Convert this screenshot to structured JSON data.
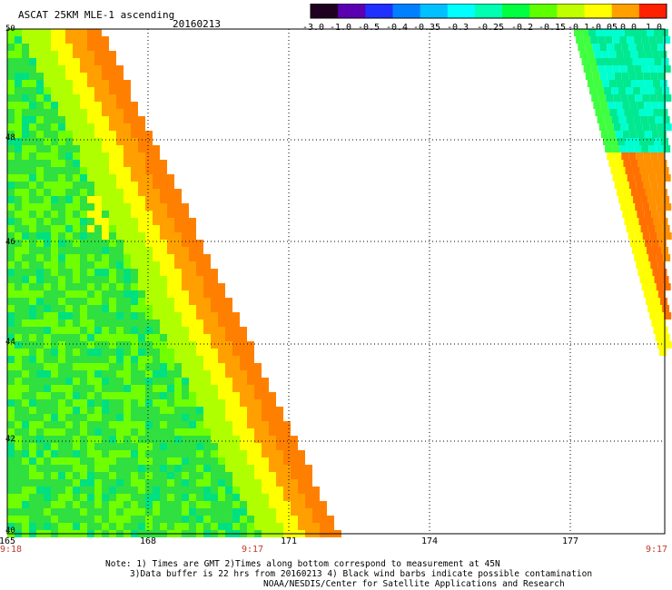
{
  "header": {
    "title": "ASCAT 25KM MLE-1 ascending",
    "date": "20160213"
  },
  "colorbar": {
    "tick_labels": [
      "-3.0",
      "-1.0",
      "-0.5",
      "-0.4",
      "-0.35",
      "-0.3",
      "-0.25",
      "-0.2",
      "-0.15",
      "-0.1",
      "-0.05",
      "0.0",
      "1.0"
    ],
    "colors": [
      "#200020",
      "#5a00b0",
      "#2030ff",
      "#0080ff",
      "#00c0ff",
      "#00ffff",
      "#00ffb0",
      "#00ff40",
      "#60ff00",
      "#c0ff00",
      "#ffff00",
      "#ffa000",
      "#ff2000"
    ]
  },
  "axes": {
    "lat_labels": [
      "50",
      "48",
      "46",
      "44",
      "42",
      "40"
    ],
    "lon_labels": [
      "165",
      "168",
      "171",
      "174",
      "177"
    ],
    "time_labels": [
      "9:18",
      "9:17",
      "9:17"
    ]
  },
  "notes": {
    "line1": "Note: 1) Times are GMT 2)Times along bottom correspond to measurement at 45N",
    "line2": "3)Data buffer is 22 hrs from 20160213 4) Black wind barbs indicate possible contamination",
    "line3": "NOAA/NESDIS/Center for Satellite Applications and Research"
  },
  "swaths": [
    {
      "name": "western-swath",
      "palette": [
        "#00e080",
        "#30e040",
        "#70ff00",
        "#b0ff00",
        "#ffff00",
        "#ffa000",
        "#ff8000"
      ]
    },
    {
      "name": "eastern-swath",
      "palette": [
        "#00ffd0",
        "#00e890",
        "#40ff40",
        "#a0ff00",
        "#ffff00",
        "#ff9000",
        "#ff7000"
      ]
    }
  ]
}
